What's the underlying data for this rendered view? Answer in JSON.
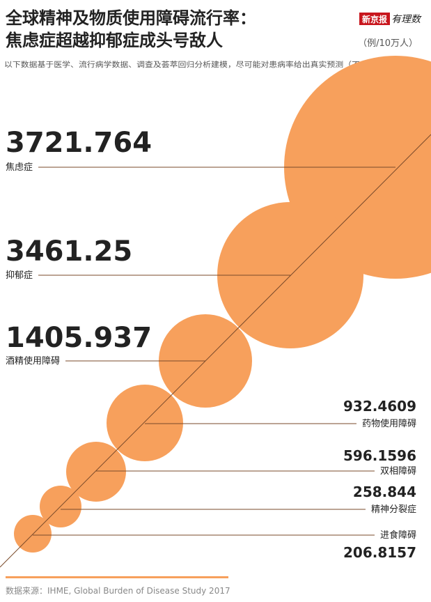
{
  "chart_data": {
    "type": "bubble",
    "title": [
      "全球精神及物质使用障碍流行率：",
      "焦虑症超越抑郁症成头号敌人"
    ],
    "logo": [
      "新京报",
      "有理数"
    ],
    "unit": "（例/10万人）",
    "subtitle": "以下数据基于医学、流行病学数据、调查及荟萃回归分析建模，尽可能对患病率给出真实预测（不局限于确诊病例）",
    "source": "数据来源：IHME, Global Burden of Disease Study 2017",
    "categories": [
      "焦虑症",
      "抑郁症",
      "酒精使用障碍",
      "药物使用障碍",
      "双相障碍",
      "精神分裂症",
      "进食障碍"
    ],
    "values": [
      3721.764,
      3461.25,
      1405.937,
      932.4609,
      596.1596,
      258.844,
      206.8157
    ],
    "color": "#f7a05c"
  }
}
